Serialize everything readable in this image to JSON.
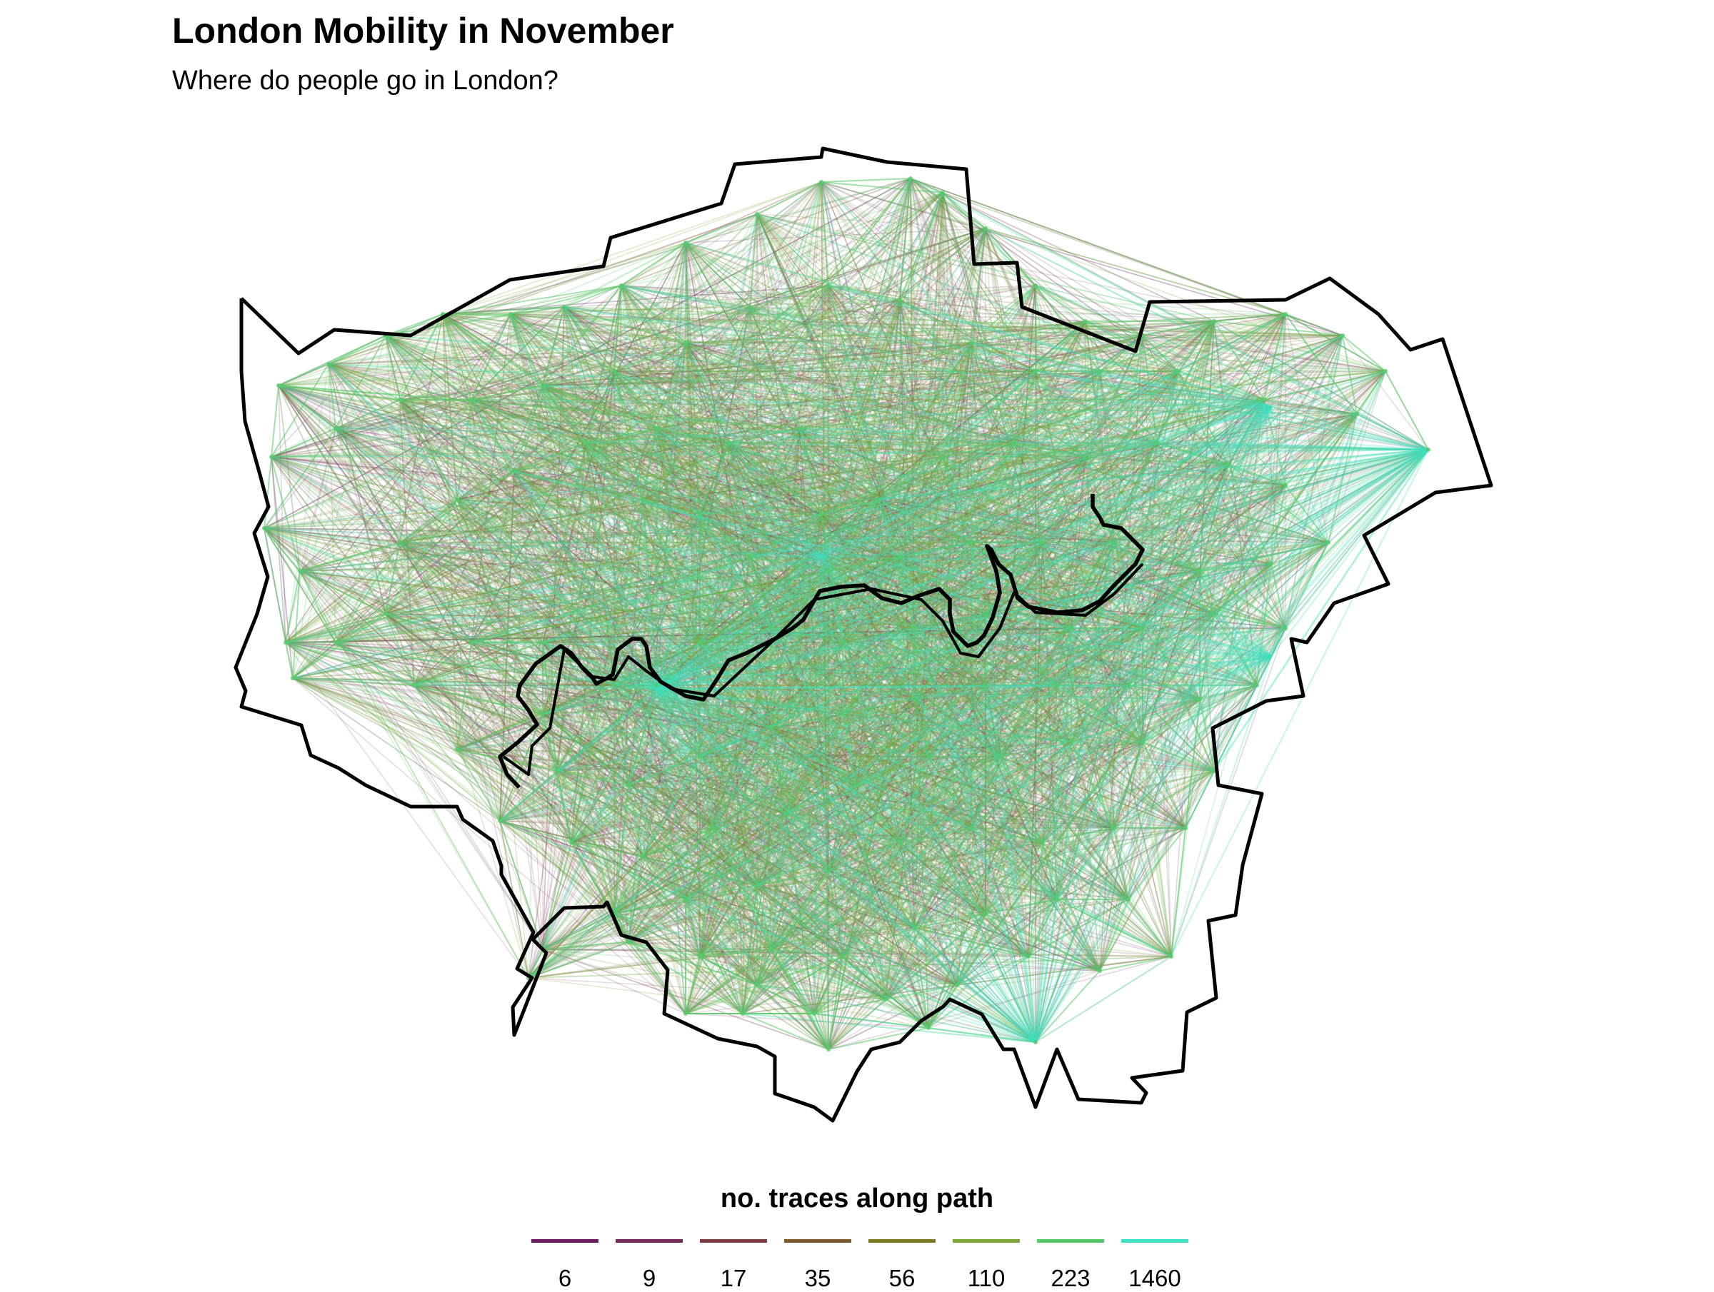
{
  "title": "London Mobility in November",
  "subtitle": "Where do people go in London?",
  "legend": {
    "title": "no. traces along path",
    "items": [
      {
        "label": "6",
        "color": "#6a1b5e"
      },
      {
        "label": "9",
        "color": "#742a55"
      },
      {
        "label": "17",
        "color": "#7e3d46"
      },
      {
        "label": "35",
        "color": "#7e5a30"
      },
      {
        "label": "56",
        "color": "#7b7a24"
      },
      {
        "label": "110",
        "color": "#7ba838"
      },
      {
        "label": "223",
        "color": "#57c868"
      },
      {
        "label": "1460",
        "color": "#3fe0c0"
      }
    ]
  },
  "map": {
    "boundary_color": "#000000",
    "river_color": "#000000",
    "flow_palette": [
      "#6a1b5e",
      "#7e3d46",
      "#7e5a30",
      "#7ba838",
      "#57c868",
      "#3fe0c0"
    ]
  }
}
